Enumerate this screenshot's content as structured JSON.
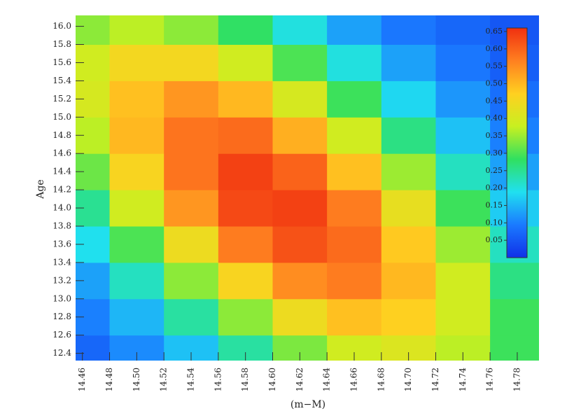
{
  "chart_data": {
    "type": "heatmap",
    "x_label": "(m−M)",
    "y_label": "Age",
    "x": [
      14.46,
      14.5,
      14.54,
      14.58,
      14.62,
      14.66,
      14.7,
      14.74,
      14.78
    ],
    "y": [
      12.4,
      12.8,
      13.2,
      13.6,
      14.0,
      14.4,
      14.8,
      15.2,
      15.6,
      16.0
    ],
    "values": [
      [
        0.07,
        0.11,
        0.16,
        0.24,
        0.33,
        0.39,
        0.41,
        0.37,
        0.29
      ],
      [
        0.1,
        0.15,
        0.24,
        0.34,
        0.44,
        0.49,
        0.47,
        0.39,
        0.29
      ],
      [
        0.13,
        0.22,
        0.34,
        0.46,
        0.55,
        0.57,
        0.5,
        0.39,
        0.26
      ],
      [
        0.19,
        0.3,
        0.44,
        0.57,
        0.62,
        0.59,
        0.48,
        0.35,
        0.22
      ],
      [
        0.25,
        0.39,
        0.54,
        0.63,
        0.64,
        0.57,
        0.43,
        0.29,
        0.17
      ],
      [
        0.32,
        0.46,
        0.58,
        0.64,
        0.6,
        0.49,
        0.35,
        0.22,
        0.13
      ],
      [
        0.37,
        0.5,
        0.58,
        0.59,
        0.51,
        0.39,
        0.26,
        0.16,
        0.1
      ],
      [
        0.4,
        0.49,
        0.54,
        0.5,
        0.4,
        0.29,
        0.18,
        0.12,
        0.08
      ],
      [
        0.39,
        0.45,
        0.45,
        0.39,
        0.3,
        0.2,
        0.13,
        0.09,
        0.06
      ],
      [
        0.34,
        0.37,
        0.34,
        0.28,
        0.2,
        0.13,
        0.09,
        0.07,
        0.05
      ]
    ],
    "xlim": [
      14.455,
      14.796
    ],
    "ylim": [
      12.32,
      16.12
    ],
    "xticks": [
      14.46,
      14.48,
      {
        "value": 14.5,
        "label": "14.50"
      },
      14.52,
      14.54,
      14.56,
      14.58,
      {
        "value": 14.6,
        "label": "14.60"
      },
      14.62,
      14.64,
      14.66,
      14.68,
      {
        "value": 14.7,
        "label": "14.70"
      },
      14.72,
      14.74,
      14.76,
      14.78
    ],
    "yticks": [
      12.4,
      12.6,
      12.8,
      {
        "value": 13.0,
        "label": "13.0"
      },
      13.2,
      13.4,
      13.6,
      13.8,
      {
        "value": 14.0,
        "label": "14.0"
      },
      14.2,
      14.4,
      14.6,
      14.8,
      {
        "value": 15.0,
        "label": "15.0"
      },
      15.2,
      15.4,
      15.6,
      15.8,
      {
        "value": 16.0,
        "label": "16.0"
      }
    ],
    "colormap": [
      "#1030e8",
      "#1a7aff",
      "#20e0f0",
      "#30e060",
      "#c8f020",
      "#ffd020",
      "#ff8020",
      "#f03010"
    ],
    "colorbar": {
      "lim": [
        0,
        0.66
      ],
      "ticks": [
        0.05,
        {
          "value": 0.1,
          "label": "0.10"
        },
        0.15,
        {
          "value": 0.2,
          "label": "0.20"
        },
        0.25,
        {
          "value": 0.3,
          "label": "0.30"
        },
        0.35,
        {
          "value": 0.4,
          "label": "0.40"
        },
        0.45,
        {
          "value": 0.5,
          "label": "0.50"
        },
        0.55,
        {
          "value": 0.6,
          "label": "0.60"
        },
        0.65
      ]
    }
  }
}
